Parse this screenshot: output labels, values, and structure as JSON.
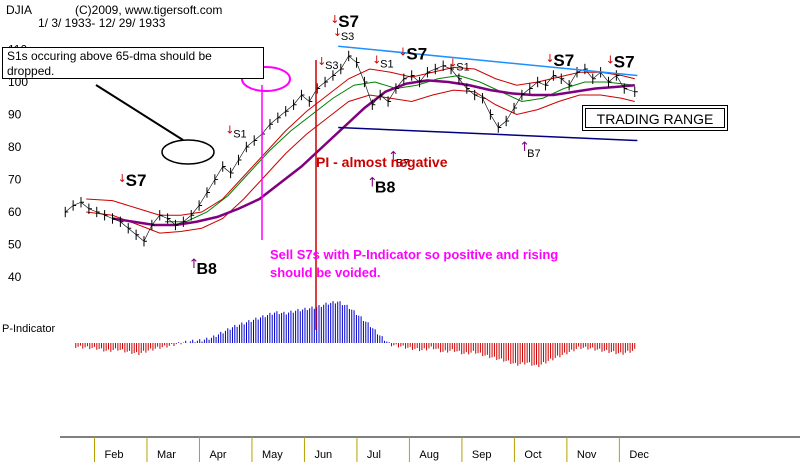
{
  "header": {
    "symbol": "DJIA",
    "copyright": "(C)2009, www.tigersoft.com",
    "date_range": "1/ 3/ 1933- 12/ 29/ 1933"
  },
  "notes": {
    "s1_note": "S1s occuring above 65-dma should be dropped.",
    "trading_range": "TRADING RANGE",
    "pi_note": "PI - almost negative",
    "s7_note_line1": "Sell S7s with P-Indicator so positive and rising",
    "s7_note_line2": "should be voided."
  },
  "colors": {
    "price": "#000000",
    "ma65": "#800080",
    "band_upper": "#cc0000",
    "band_lower": "#cc0000",
    "ma21": "#008000",
    "trendline": "#1e90ff",
    "support_line": "#000080",
    "pi_positive": "#0000cc",
    "pi_negative": "#cc0000",
    "annotation_red": "#cc0000",
    "annotation_magenta": "#ff00ff",
    "buy_arrow": "#800080",
    "sell_arrow": "#cc0000"
  },
  "chart_data": {
    "type": "line",
    "title": "DJIA",
    "yticks": [
      40,
      50,
      60,
      70,
      80,
      90,
      100,
      110
    ],
    "ylim": [
      40,
      112
    ],
    "months": [
      "Feb",
      "Mar",
      "Apr",
      "May",
      "Jun",
      "Jul",
      "Aug",
      "Sep",
      "Oct",
      "Nov",
      "Dec"
    ],
    "xlim": [
      1,
      12.05
    ],
    "series": [
      {
        "name": "DJIA",
        "x": [
          1.1,
          1.25,
          1.4,
          1.55,
          1.7,
          1.85,
          2.0,
          2.15,
          2.3,
          2.45,
          2.6,
          2.75,
          2.9,
          3.05,
          3.2,
          3.35,
          3.5,
          3.65,
          3.8,
          3.95,
          4.1,
          4.25,
          4.4,
          4.55,
          4.7,
          4.85,
          5.0,
          5.15,
          5.3,
          5.45,
          5.6,
          5.75,
          5.9,
          6.05,
          6.2,
          6.35,
          6.5,
          6.65,
          6.8,
          6.95,
          7.1,
          7.25,
          7.4,
          7.55,
          7.7,
          7.85,
          8.0,
          8.15,
          8.3,
          8.45,
          8.6,
          8.75,
          8.9,
          9.05,
          9.2,
          9.35,
          9.5,
          9.65,
          9.8,
          9.95,
          10.1,
          10.25,
          10.4,
          10.55,
          10.7,
          10.85,
          11.0,
          11.15,
          11.3,
          11.45,
          11.6,
          11.75,
          11.95
        ],
        "values": [
          60,
          62,
          63,
          61,
          60,
          59,
          58,
          57,
          55,
          53,
          51,
          56,
          59,
          58,
          56,
          57,
          59,
          62,
          66,
          70,
          74,
          72,
          76,
          80,
          82,
          84,
          87,
          89,
          91,
          93,
          96,
          94,
          98,
          100,
          102,
          104,
          108,
          106,
          100,
          93,
          96,
          94,
          98,
          101,
          102,
          100,
          103,
          104,
          105,
          104,
          101,
          98,
          96,
          95,
          90,
          86,
          88,
          92,
          96,
          98,
          100,
          99,
          102,
          101,
          99,
          103,
          104,
          101,
          103,
          100,
          102,
          98,
          97
        ]
      },
      {
        "name": "65-dma",
        "x": [
          2.0,
          2.4,
          2.8,
          3.2,
          3.6,
          4.0,
          4.4,
          4.8,
          5.2,
          5.6,
          6.0,
          6.4,
          6.8,
          7.2,
          7.6,
          8.0,
          8.4,
          8.8,
          9.2,
          9.6,
          10.0,
          10.4,
          10.8,
          11.2,
          11.6,
          11.95
        ],
        "values": [
          58,
          57,
          56,
          56,
          57,
          58.5,
          61,
          64,
          69,
          74,
          80,
          86,
          92,
          97,
          99.5,
          100.5,
          100,
          99,
          97.5,
          96.5,
          96,
          96,
          97,
          98,
          98.5,
          99
        ]
      },
      {
        "name": "21-dma",
        "x": [
          3.0,
          3.4,
          3.8,
          4.2,
          4.6,
          5.0,
          5.4,
          5.8,
          6.2,
          6.6,
          7.0,
          7.4,
          7.8,
          8.2,
          8.6,
          9.0,
          9.4,
          9.8,
          10.2,
          10.6,
          11.0,
          11.4,
          11.95
        ],
        "values": [
          57,
          57,
          60,
          65,
          72,
          79,
          85,
          90,
          95,
          99,
          100,
          98,
          99,
          101,
          102,
          100,
          97,
          94,
          95,
          98,
          100,
          100,
          99
        ]
      },
      {
        "name": "upper band",
        "x": [
          1.5,
          2.0,
          2.5,
          2.9,
          3.3,
          3.7,
          4.1,
          4.5,
          4.9,
          5.3,
          5.7,
          6.1,
          6.5,
          6.9,
          7.3,
          7.7,
          8.1,
          8.5,
          8.9,
          9.3,
          9.7,
          10.1,
          10.5,
          10.9,
          11.3,
          11.7,
          11.95
        ],
        "values": [
          64,
          63.5,
          61,
          59,
          59,
          60,
          64,
          71,
          78,
          85,
          91,
          96,
          101,
          104,
          103,
          101.5,
          103,
          104.5,
          104,
          101,
          99,
          100,
          101.5,
          103,
          103,
          102,
          101
        ]
      },
      {
        "name": "lower band",
        "x": [
          1.5,
          2.0,
          2.5,
          2.9,
          3.3,
          3.7,
          4.1,
          4.5,
          4.9,
          5.3,
          5.7,
          6.1,
          6.5,
          6.9,
          7.3,
          7.7,
          8.1,
          8.5,
          8.9,
          9.3,
          9.7,
          10.1,
          10.5,
          10.9,
          11.3,
          11.7,
          11.95
        ],
        "values": [
          60,
          59,
          56,
          53.5,
          54,
          55,
          58,
          64,
          71,
          78,
          84,
          89,
          94,
          96,
          95,
          94,
          96,
          97.5,
          97,
          93,
          90,
          91.5,
          94,
          96,
          96,
          95,
          94
        ]
      },
      {
        "name": "P-Indicator",
        "x": [
          1.3,
          1.5,
          1.7,
          1.9,
          2.1,
          2.3,
          2.5,
          2.7,
          2.9,
          3.1,
          3.3,
          3.5,
          3.7,
          3.9,
          4.1,
          4.3,
          4.5,
          4.7,
          4.9,
          5.1,
          5.3,
          5.5,
          5.7,
          5.9,
          6.1,
          6.3,
          6.5,
          6.7,
          6.9,
          7.1,
          7.3,
          7.5,
          7.7,
          7.9,
          8.1,
          8.3,
          8.5,
          8.7,
          8.9,
          9.1,
          9.3,
          9.5,
          9.7,
          9.9,
          10.1,
          10.3,
          10.5,
          10.7,
          10.9,
          11.1,
          11.3,
          11.5,
          11.7,
          11.95
        ],
        "values": [
          -4,
          -5,
          -6,
          -9,
          -7,
          -10,
          -12,
          -8,
          -5,
          -3,
          0,
          2,
          3,
          6,
          12,
          18,
          22,
          26,
          30,
          34,
          33,
          36,
          38,
          40,
          44,
          46,
          40,
          30,
          20,
          8,
          -2,
          -4,
          -6,
          -8,
          -5,
          -10,
          -8,
          -12,
          -10,
          -14,
          -17,
          -20,
          -24,
          -22,
          -26,
          -20,
          -15,
          -10,
          -5,
          -6,
          -8,
          -10,
          -12,
          -8
        ],
        "ylim": [
          -30,
          50
        ]
      }
    ],
    "annotations": {
      "sell_signals": [
        {
          "label": "S7",
          "x": 2.25,
          "y": 68
        },
        {
          "label": "S1",
          "x": 4.3,
          "y": 83
        },
        {
          "label": "S3",
          "x": 6.05,
          "y": 104
        },
        {
          "label": "S7",
          "x": 6.3,
          "y": 117
        },
        {
          "label": "S3",
          "x": 6.35,
          "y": 113
        },
        {
          "label": "S1",
          "x": 7.1,
          "y": 104.5
        },
        {
          "label": "S7",
          "x": 7.6,
          "y": 107
        },
        {
          "label": "S1",
          "x": 8.55,
          "y": 103.5
        },
        {
          "label": "S7",
          "x": 10.4,
          "y": 105
        },
        {
          "label": "S7",
          "x": 11.55,
          "y": 104.5
        }
      ],
      "buy_signals": [
        {
          "label": "B7",
          "x": 7.4,
          "y": 74
        },
        {
          "label": "B8",
          "x": 7.0,
          "y": 66
        },
        {
          "label": "B7",
          "x": 9.9,
          "y": 77
        },
        {
          "label": "B8",
          "x": 3.6,
          "y": 41
        }
      ],
      "trading_range_upper": {
        "x": [
          6.3,
          12.0
        ],
        "values": [
          111,
          102
        ]
      },
      "trading_range_lower": {
        "x": [
          6.3,
          12.0
        ],
        "values": [
          86,
          82
        ]
      }
    }
  }
}
